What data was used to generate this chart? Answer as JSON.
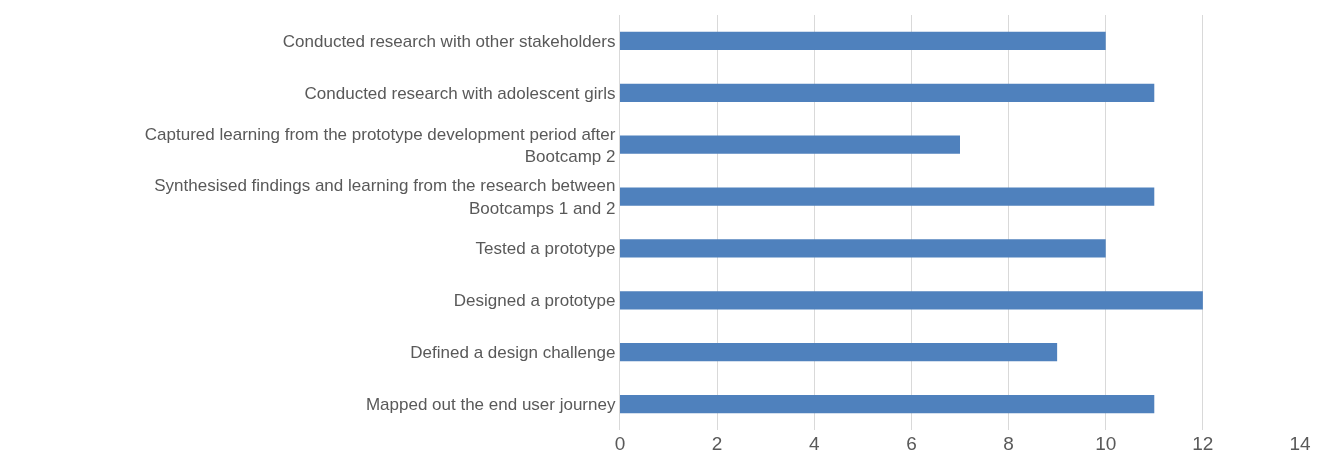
{
  "chart_data": {
    "type": "bar",
    "orientation": "horizontal",
    "categories": [
      "Conducted research with other stakeholders",
      "Conducted research with adolescent girls",
      "Captured learning from the prototype development period after Bootcamp 2",
      "Synthesised findings and learning from the research between Bootcamps 1 and 2",
      "Tested a prototype",
      "Designed a prototype",
      "Defined a design challenge",
      "Mapped out the end user journey"
    ],
    "values": [
      10,
      11,
      7,
      11,
      10,
      12,
      9,
      11
    ],
    "color": "#4f81bd",
    "xlim": [
      0,
      14
    ],
    "xticks": [
      0,
      2,
      4,
      6,
      8,
      10,
      12,
      14
    ],
    "grid": "x"
  }
}
